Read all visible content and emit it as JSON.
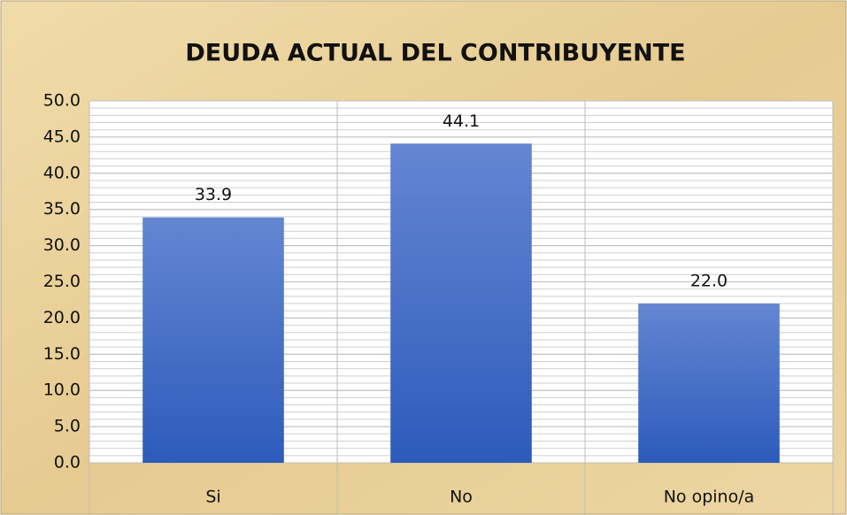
{
  "chart_data": {
    "type": "bar",
    "title": "DEUDA ACTUAL DEL CONTRIBUYENTE",
    "categories": [
      "Si",
      "No",
      "No opino/a"
    ],
    "values": [
      33.9,
      44.1,
      22.0
    ],
    "value_labels": [
      "33.9",
      "44.1",
      "22.0"
    ],
    "color": "#3d6ac7",
    "ylim": [
      0,
      50
    ],
    "yticks": [
      {
        "value": 0,
        "label": "0.0"
      },
      {
        "value": 5,
        "label": "5.0"
      },
      {
        "value": 10,
        "label": "10.0"
      },
      {
        "value": 15,
        "label": "15.0"
      },
      {
        "value": 20,
        "label": "20.0"
      },
      {
        "value": 25,
        "label": "25.0"
      },
      {
        "value": 30,
        "label": "30.0"
      },
      {
        "value": 35,
        "label": "35.0"
      },
      {
        "value": 40,
        "label": "40.0"
      },
      {
        "value": 45,
        "label": "45.0"
      },
      {
        "value": 50,
        "label": "50.0"
      }
    ],
    "grid": true,
    "minor_grid": 1
  }
}
